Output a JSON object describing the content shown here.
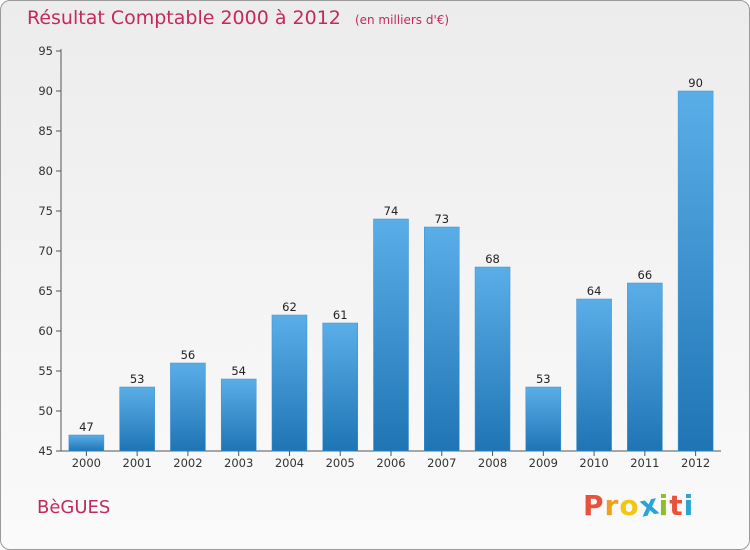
{
  "header": {
    "title": "Résultat Comptable 2000 à 2012",
    "unit": "(en milliers d'€)"
  },
  "footer": {
    "commune": "BèGUES",
    "logo_letters": [
      "P",
      "r",
      "o",
      "x",
      "i",
      "t",
      "i"
    ]
  },
  "colors": {
    "title": "#c22a5c",
    "bar_light": "#5aaee8",
    "bar_dark": "#1f75b4",
    "logo": [
      "#e8523a",
      "#f0a020",
      "#f3c614",
      "#2aa3d6",
      "#8cbf26",
      "#e8523a",
      "#2aa3d6"
    ]
  },
  "chart_data": {
    "type": "bar",
    "title": "Résultat Comptable 2000 à 2012",
    "ylabel": "en milliers d'€",
    "xlabel": "",
    "categories": [
      "2000",
      "2001",
      "2002",
      "2003",
      "2004",
      "2005",
      "2006",
      "2007",
      "2008",
      "2009",
      "2010",
      "2011",
      "2012"
    ],
    "values": [
      47,
      53,
      56,
      54,
      62,
      61,
      74,
      73,
      68,
      53,
      64,
      66,
      90
    ],
    "ylim": [
      45,
      95
    ],
    "yticks": [
      45,
      50,
      55,
      60,
      65,
      70,
      75,
      80,
      85,
      90,
      95
    ],
    "grid": false
  }
}
